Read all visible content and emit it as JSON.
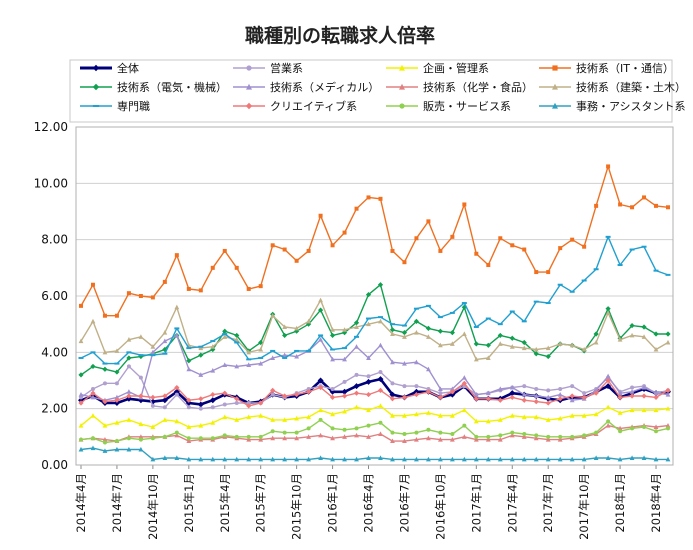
{
  "chart_data": {
    "type": "line",
    "title": "職種別の転職求人倍率",
    "xlabel": "",
    "ylabel": "",
    "ylim": [
      0,
      12
    ],
    "yticks": [
      "0.00",
      "2.00",
      "4.00",
      "6.00",
      "8.00",
      "10.00",
      "12.00"
    ],
    "grid": true,
    "legend_position": "top",
    "x_tick_labels": [
      "2014年4月",
      "2014年7月",
      "2014年10月",
      "2015年1月",
      "2015年4月",
      "2015年7月",
      "2015年10月",
      "2016年1月",
      "2016年4月",
      "2016年7月",
      "2016年10月",
      "2017年1月",
      "2017年4月",
      "2017年7月",
      "2017年10月",
      "2018年1月",
      "2018年4月"
    ],
    "x_tick_index": [
      0,
      3,
      6,
      9,
      12,
      15,
      18,
      21,
      24,
      27,
      30,
      33,
      36,
      39,
      42,
      45,
      48
    ],
    "series": [
      {
        "name": "全体",
        "color": "#00007a",
        "marker": "diamond",
        "bold": true,
        "values": [
          2.3,
          2.45,
          2.2,
          2.2,
          2.35,
          2.3,
          2.25,
          2.3,
          2.6,
          2.2,
          2.15,
          2.3,
          2.5,
          2.4,
          2.2,
          2.25,
          2.5,
          2.4,
          2.45,
          2.6,
          3.0,
          2.6,
          2.6,
          2.8,
          2.95,
          3.05,
          2.5,
          2.4,
          2.6,
          2.6,
          2.4,
          2.5,
          2.8,
          2.35,
          2.35,
          2.35,
          2.55,
          2.5,
          2.45,
          2.35,
          2.3,
          2.4,
          2.4,
          2.6,
          2.8,
          2.4,
          2.55,
          2.7,
          2.55,
          2.6
        ]
      },
      {
        "name": "営業系",
        "color": "#b0a0d0",
        "marker": "circle",
        "values": [
          2.4,
          2.7,
          2.9,
          2.9,
          3.5,
          3.1,
          2.1,
          2.05,
          2.5,
          2.05,
          2.0,
          2.05,
          2.15,
          2.2,
          2.2,
          2.2,
          2.5,
          2.4,
          2.55,
          2.7,
          2.8,
          2.7,
          2.95,
          3.2,
          3.15,
          3.3,
          2.9,
          2.8,
          2.8,
          2.7,
          2.55,
          2.6,
          2.8,
          2.5,
          2.55,
          2.65,
          2.75,
          2.8,
          2.7,
          2.65,
          2.7,
          2.8,
          2.55,
          2.7,
          3.1,
          2.6,
          2.75,
          2.8,
          2.55,
          2.65
        ]
      },
      {
        "name": "企画・管理系",
        "color": "#f2f200",
        "marker": "triangle",
        "values": [
          1.4,
          1.75,
          1.4,
          1.5,
          1.6,
          1.45,
          1.35,
          1.6,
          1.55,
          1.35,
          1.4,
          1.5,
          1.7,
          1.6,
          1.7,
          1.75,
          1.6,
          1.6,
          1.65,
          1.7,
          1.95,
          1.8,
          1.9,
          2.05,
          1.95,
          2.1,
          1.75,
          1.75,
          1.8,
          1.85,
          1.75,
          1.75,
          1.95,
          1.55,
          1.55,
          1.6,
          1.75,
          1.7,
          1.7,
          1.6,
          1.65,
          1.75,
          1.75,
          1.8,
          2.05,
          1.85,
          1.95,
          1.95,
          1.95,
          2.0
        ]
      },
      {
        "name": "技術系（IT・通信）",
        "color": "#f07020",
        "marker": "square",
        "values": [
          5.65,
          6.4,
          5.3,
          5.3,
          6.1,
          6.0,
          5.95,
          6.5,
          7.45,
          6.25,
          6.2,
          7.0,
          7.6,
          7.0,
          6.25,
          6.35,
          7.8,
          7.65,
          7.25,
          7.6,
          8.85,
          7.8,
          8.25,
          9.1,
          9.5,
          9.45,
          7.6,
          7.2,
          8.05,
          8.65,
          7.6,
          8.1,
          9.25,
          7.5,
          7.1,
          8.05,
          7.8,
          7.65,
          6.85,
          6.85,
          7.7,
          8.0,
          7.75,
          9.2,
          10.6,
          9.25,
          9.15,
          9.5,
          9.2,
          9.15
        ]
      },
      {
        "name": "技術系（電気・機械）",
        "color": "#10a050",
        "marker": "diamond",
        "values": [
          3.2,
          3.5,
          3.4,
          3.3,
          3.8,
          3.85,
          3.95,
          4.1,
          4.6,
          3.7,
          3.9,
          4.1,
          4.75,
          4.6,
          4.05,
          4.35,
          5.35,
          4.6,
          4.75,
          5.0,
          5.5,
          4.6,
          4.7,
          5.05,
          6.05,
          6.4,
          4.8,
          4.7,
          5.1,
          4.85,
          4.75,
          4.7,
          5.6,
          4.3,
          4.25,
          4.6,
          4.5,
          4.35,
          3.95,
          3.85,
          4.3,
          4.25,
          4.05,
          4.65,
          5.55,
          4.5,
          4.95,
          4.9,
          4.65,
          4.65
        ]
      },
      {
        "name": "技術系（メディカル）",
        "color": "#a090d0",
        "marker": "triangle",
        "values": [
          2.5,
          2.4,
          2.3,
          2.4,
          2.6,
          2.4,
          4.0,
          4.4,
          4.6,
          3.4,
          3.2,
          3.35,
          3.55,
          3.5,
          3.55,
          3.6,
          3.8,
          3.9,
          3.85,
          4.05,
          4.45,
          3.75,
          3.75,
          4.2,
          3.8,
          4.25,
          3.65,
          3.6,
          3.65,
          3.4,
          2.7,
          2.7,
          3.1,
          2.5,
          2.55,
          2.7,
          2.75,
          2.5,
          2.45,
          2.4,
          2.5,
          2.3,
          2.35,
          2.65,
          3.15,
          2.55,
          2.6,
          2.75,
          2.55,
          2.5
        ]
      },
      {
        "name": "技術系（化学・食品）",
        "color": "#e08080",
        "marker": "triangle",
        "values": [
          0.9,
          0.95,
          0.9,
          0.85,
          1.0,
          1.0,
          1.0,
          1.0,
          1.05,
          0.85,
          0.9,
          0.9,
          1.0,
          0.95,
          0.9,
          0.9,
          0.95,
          0.95,
          0.95,
          1.0,
          1.05,
          0.95,
          1.0,
          1.05,
          1.0,
          1.1,
          0.85,
          0.85,
          0.9,
          0.95,
          0.9,
          0.9,
          1.0,
          0.9,
          0.9,
          0.9,
          1.05,
          1.0,
          0.95,
          0.9,
          0.9,
          0.95,
          1.0,
          1.1,
          1.4,
          1.3,
          1.35,
          1.4,
          1.35,
          1.4
        ]
      },
      {
        "name": "技術系（建築・土木）",
        "color": "#c0b088",
        "marker": "triangle",
        "values": [
          4.4,
          5.1,
          4.0,
          4.05,
          4.45,
          4.55,
          4.2,
          4.7,
          5.6,
          4.25,
          4.15,
          4.2,
          4.55,
          4.45,
          4.0,
          4.1,
          5.3,
          4.9,
          4.85,
          5.1,
          5.85,
          4.8,
          4.8,
          4.9,
          5.0,
          5.1,
          4.65,
          4.55,
          4.7,
          4.55,
          4.25,
          4.3,
          4.65,
          3.75,
          3.8,
          4.3,
          4.2,
          4.15,
          4.1,
          4.15,
          4.3,
          4.25,
          4.1,
          4.35,
          5.4,
          4.45,
          4.6,
          4.55,
          4.1,
          4.35
        ]
      },
      {
        "name": "専門職",
        "color": "#20a0d0",
        "marker": "dash",
        "values": [
          3.8,
          4.0,
          3.6,
          3.6,
          4.0,
          3.9,
          3.9,
          3.95,
          4.85,
          4.15,
          4.2,
          4.4,
          4.65,
          4.35,
          3.75,
          3.8,
          4.05,
          3.8,
          4.05,
          4.05,
          4.6,
          4.1,
          4.15,
          4.55,
          5.2,
          5.25,
          5.0,
          4.95,
          5.55,
          5.65,
          5.25,
          5.4,
          5.75,
          4.9,
          5.2,
          5.0,
          5.45,
          5.1,
          5.8,
          5.75,
          6.4,
          6.15,
          6.55,
          6.95,
          8.1,
          7.1,
          7.65,
          7.75,
          6.9,
          6.75
        ]
      },
      {
        "name": "クリエイティブ系",
        "color": "#f07878",
        "marker": "diamond",
        "values": [
          2.2,
          2.55,
          2.25,
          2.3,
          2.45,
          2.45,
          2.4,
          2.45,
          2.75,
          2.3,
          2.35,
          2.5,
          2.55,
          2.35,
          2.1,
          2.2,
          2.65,
          2.45,
          2.5,
          2.6,
          2.75,
          2.4,
          2.45,
          2.55,
          2.5,
          2.65,
          2.35,
          2.4,
          2.5,
          2.6,
          2.4,
          2.6,
          2.9,
          2.35,
          2.35,
          2.3,
          2.4,
          2.3,
          2.25,
          2.2,
          2.35,
          2.45,
          2.4,
          2.55,
          3.0,
          2.4,
          2.45,
          2.45,
          2.4,
          2.65
        ]
      },
      {
        "name": "販売・サービス系",
        "color": "#90d050",
        "marker": "circle",
        "values": [
          0.9,
          0.95,
          0.8,
          0.85,
          0.95,
          0.9,
          0.95,
          1.0,
          1.15,
          0.95,
          0.95,
          0.95,
          1.05,
          1.0,
          1.0,
          1.0,
          1.2,
          1.15,
          1.15,
          1.3,
          1.6,
          1.3,
          1.25,
          1.3,
          1.4,
          1.5,
          1.15,
          1.1,
          1.15,
          1.25,
          1.15,
          1.1,
          1.4,
          1.0,
          1.0,
          1.05,
          1.15,
          1.1,
          1.05,
          1.0,
          1.0,
          1.0,
          1.05,
          1.15,
          1.55,
          1.2,
          1.3,
          1.35,
          1.2,
          1.3
        ]
      },
      {
        "name": "事務・アシスタント系",
        "color": "#30a0c0",
        "marker": "triangle",
        "values": [
          0.55,
          0.6,
          0.5,
          0.55,
          0.55,
          0.55,
          0.2,
          0.25,
          0.25,
          0.2,
          0.2,
          0.2,
          0.2,
          0.2,
          0.2,
          0.2,
          0.2,
          0.2,
          0.2,
          0.2,
          0.25,
          0.2,
          0.2,
          0.2,
          0.25,
          0.25,
          0.2,
          0.2,
          0.2,
          0.2,
          0.2,
          0.2,
          0.2,
          0.2,
          0.2,
          0.2,
          0.2,
          0.2,
          0.2,
          0.2,
          0.2,
          0.2,
          0.2,
          0.25,
          0.25,
          0.2,
          0.25,
          0.25,
          0.2,
          0.2
        ]
      }
    ]
  }
}
